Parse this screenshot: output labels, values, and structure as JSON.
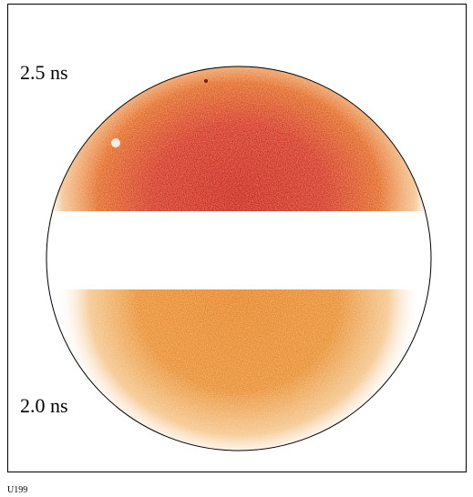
{
  "labels": {
    "top": "2.5 ns",
    "bottom": "2.0 ns"
  },
  "caption": "U199"
}
